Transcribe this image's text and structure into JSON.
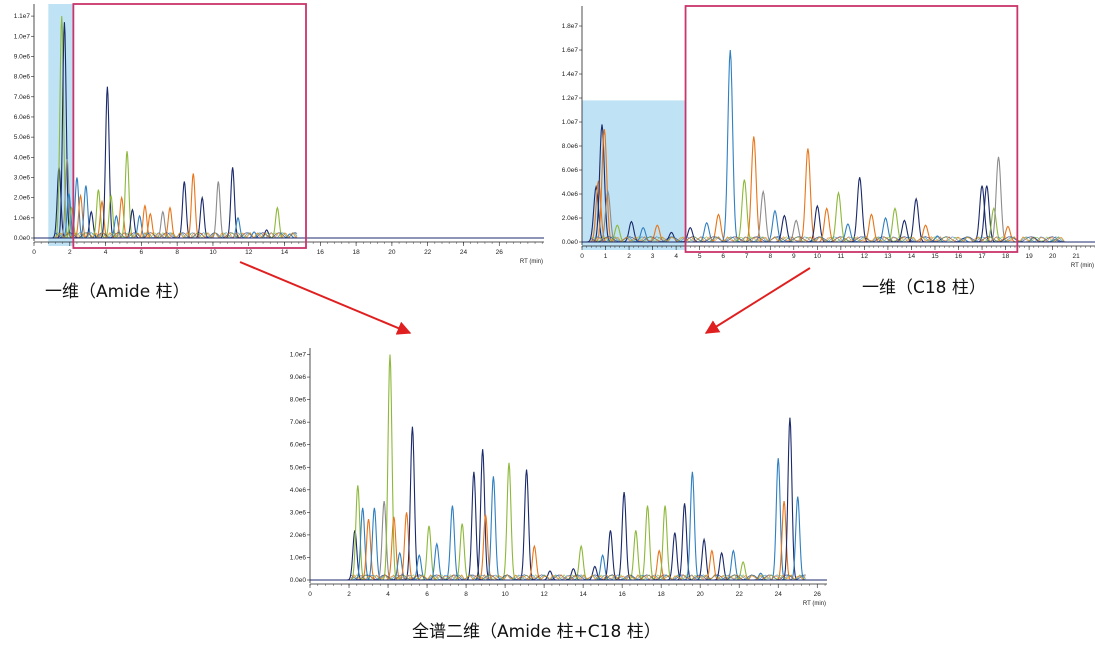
{
  "captions": {
    "top_left": "一维（Amide 柱）",
    "top_right": "一维（C18 柱）",
    "bottom": "全谱二维（Amide 柱+C18 柱）"
  },
  "colors": {
    "blue": "#2f7fc1",
    "navy": "#1b2a6b",
    "green": "#8db83a",
    "orange": "#e8751a",
    "gray": "#8c8c8c",
    "highlight_fill": "#bfe3f5",
    "box_stroke": "#c9346b",
    "arrow": "#e02020"
  },
  "chart_data": [
    {
      "name": "amide-1d",
      "type": "line",
      "xlabel": "RT (min)",
      "xlim": [
        0,
        28.5
      ],
      "ylim": [
        0,
        11500000
      ],
      "x_ticks": [
        0,
        2,
        4,
        6,
        8,
        10,
        12,
        14,
        16,
        18,
        20,
        22,
        24,
        26
      ],
      "y_ticks": [
        {
          "value": 0,
          "label": "0.0e0"
        },
        {
          "value": 1000000,
          "label": "1.0e6"
        },
        {
          "value": 2000000,
          "label": "2.0e6"
        },
        {
          "value": 3000000,
          "label": "3.0e6"
        },
        {
          "value": 4000000,
          "label": "4.0e6"
        },
        {
          "value": 5000000,
          "label": "5.0e6"
        },
        {
          "value": 6000000,
          "label": "6.0e6"
        },
        {
          "value": 7000000,
          "label": "7.0e6"
        },
        {
          "value": 8000000,
          "label": "8.0e6"
        },
        {
          "value": 9000000,
          "label": "9.0e6"
        },
        {
          "value": 10000000,
          "label": "1.0e7"
        },
        {
          "value": 11000000,
          "label": "1.1e7"
        }
      ],
      "highlight_range": [
        0.8,
        2.2
      ],
      "box_range": [
        2.2,
        15.2
      ],
      "peaks": [
        {
          "x": 1.4,
          "y": 3500000,
          "color": "navy"
        },
        {
          "x": 1.55,
          "y": 11000000,
          "color": "green"
        },
        {
          "x": 1.7,
          "y": 10700000,
          "color": "navy"
        },
        {
          "x": 1.85,
          "y": 3900000,
          "color": "gray"
        },
        {
          "x": 1.95,
          "y": 2200000,
          "color": "blue"
        },
        {
          "x": 2.1,
          "y": 1500000,
          "color": "green"
        },
        {
          "x": 2.4,
          "y": 3000000,
          "color": "blue"
        },
        {
          "x": 2.6,
          "y": 2100000,
          "color": "orange"
        },
        {
          "x": 2.9,
          "y": 2600000,
          "color": "blue"
        },
        {
          "x": 3.2,
          "y": 1300000,
          "color": "navy"
        },
        {
          "x": 3.6,
          "y": 2400000,
          "color": "green"
        },
        {
          "x": 3.8,
          "y": 1800000,
          "color": "orange"
        },
        {
          "x": 4.1,
          "y": 7500000,
          "color": "navy"
        },
        {
          "x": 4.3,
          "y": 2100000,
          "color": "green"
        },
        {
          "x": 4.6,
          "y": 1100000,
          "color": "blue"
        },
        {
          "x": 4.9,
          "y": 2000000,
          "color": "orange"
        },
        {
          "x": 5.2,
          "y": 4300000,
          "color": "green"
        },
        {
          "x": 5.5,
          "y": 1400000,
          "color": "navy"
        },
        {
          "x": 5.9,
          "y": 1100000,
          "color": "blue"
        },
        {
          "x": 6.2,
          "y": 1600000,
          "color": "orange"
        },
        {
          "x": 6.5,
          "y": 1200000,
          "color": "orange"
        },
        {
          "x": 7.2,
          "y": 1300000,
          "color": "gray"
        },
        {
          "x": 7.6,
          "y": 1500000,
          "color": "orange"
        },
        {
          "x": 8.4,
          "y": 2800000,
          "color": "navy"
        },
        {
          "x": 8.9,
          "y": 3200000,
          "color": "orange"
        },
        {
          "x": 9.4,
          "y": 2000000,
          "color": "navy"
        },
        {
          "x": 10.3,
          "y": 2800000,
          "color": "gray"
        },
        {
          "x": 11.1,
          "y": 3500000,
          "color": "navy"
        },
        {
          "x": 11.4,
          "y": 1000000,
          "color": "blue"
        },
        {
          "x": 12.3,
          "y": 300000,
          "color": "blue"
        },
        {
          "x": 13.0,
          "y": 400000,
          "color": "navy"
        },
        {
          "x": 13.6,
          "y": 1500000,
          "color": "green"
        },
        {
          "x": 14.3,
          "y": 200000,
          "color": "blue"
        }
      ]
    },
    {
      "name": "c18-1d",
      "type": "line",
      "xlabel": "RT (min)",
      "xlim": [
        0,
        21.8
      ],
      "ylim": [
        0,
        19500000
      ],
      "x_ticks": [
        0,
        1,
        2,
        3,
        4,
        5,
        6,
        7,
        8,
        9,
        10,
        11,
        12,
        13,
        14,
        15,
        16,
        17,
        18,
        19,
        20,
        21
      ],
      "y_ticks": [
        {
          "value": 0,
          "label": "0.0e0"
        },
        {
          "value": 2000000,
          "label": "2.0e6"
        },
        {
          "value": 4000000,
          "label": "4.0e6"
        },
        {
          "value": 6000000,
          "label": "6.0e6"
        },
        {
          "value": 8000000,
          "label": "8.0e6"
        },
        {
          "value": 10000000,
          "label": "1.0e7"
        },
        {
          "value": 12000000,
          "label": "1.2e7"
        },
        {
          "value": 14000000,
          "label": "1.4e7"
        },
        {
          "value": 16000000,
          "label": "1.6e7"
        },
        {
          "value": 18000000,
          "label": "1.8e7"
        }
      ],
      "highlight_range": [
        0.0,
        4.4
      ],
      "box_range": [
        4.4,
        18.5
      ],
      "peaks": [
        {
          "x": 0.6,
          "y": 4600000,
          "color": "navy"
        },
        {
          "x": 0.7,
          "y": 5100000,
          "color": "orange"
        },
        {
          "x": 0.85,
          "y": 9800000,
          "color": "navy"
        },
        {
          "x": 0.95,
          "y": 9400000,
          "color": "orange"
        },
        {
          "x": 1.1,
          "y": 4200000,
          "color": "gray"
        },
        {
          "x": 1.5,
          "y": 1400000,
          "color": "green"
        },
        {
          "x": 2.1,
          "y": 1700000,
          "color": "navy"
        },
        {
          "x": 2.6,
          "y": 1200000,
          "color": "blue"
        },
        {
          "x": 3.2,
          "y": 1400000,
          "color": "orange"
        },
        {
          "x": 3.8,
          "y": 800000,
          "color": "navy"
        },
        {
          "x": 4.6,
          "y": 1200000,
          "color": "navy"
        },
        {
          "x": 5.3,
          "y": 1600000,
          "color": "blue"
        },
        {
          "x": 5.8,
          "y": 2300000,
          "color": "orange"
        },
        {
          "x": 6.3,
          "y": 16000000,
          "color": "blue"
        },
        {
          "x": 6.9,
          "y": 5200000,
          "color": "green"
        },
        {
          "x": 7.3,
          "y": 8800000,
          "color": "orange"
        },
        {
          "x": 7.7,
          "y": 4200000,
          "color": "gray"
        },
        {
          "x": 8.2,
          "y": 2600000,
          "color": "blue"
        },
        {
          "x": 8.6,
          "y": 2200000,
          "color": "navy"
        },
        {
          "x": 9.1,
          "y": 1800000,
          "color": "gray"
        },
        {
          "x": 9.6,
          "y": 7800000,
          "color": "orange"
        },
        {
          "x": 10.0,
          "y": 3000000,
          "color": "navy"
        },
        {
          "x": 10.4,
          "y": 2800000,
          "color": "orange"
        },
        {
          "x": 10.9,
          "y": 4100000,
          "color": "green"
        },
        {
          "x": 11.3,
          "y": 1500000,
          "color": "blue"
        },
        {
          "x": 11.8,
          "y": 5400000,
          "color": "navy"
        },
        {
          "x": 12.3,
          "y": 2300000,
          "color": "orange"
        },
        {
          "x": 12.9,
          "y": 2000000,
          "color": "blue"
        },
        {
          "x": 13.3,
          "y": 2800000,
          "color": "green"
        },
        {
          "x": 13.7,
          "y": 1800000,
          "color": "navy"
        },
        {
          "x": 14.2,
          "y": 3600000,
          "color": "navy"
        },
        {
          "x": 14.6,
          "y": 1400000,
          "color": "orange"
        },
        {
          "x": 15.1,
          "y": 500000,
          "color": "blue"
        },
        {
          "x": 16.2,
          "y": 300000,
          "color": "blue"
        },
        {
          "x": 17.0,
          "y": 4700000,
          "color": "navy"
        },
        {
          "x": 17.2,
          "y": 4700000,
          "color": "navy"
        },
        {
          "x": 17.5,
          "y": 2800000,
          "color": "green"
        },
        {
          "x": 17.7,
          "y": 7100000,
          "color": "gray"
        },
        {
          "x": 18.1,
          "y": 1300000,
          "color": "orange"
        },
        {
          "x": 19.2,
          "y": 400000,
          "color": "blue"
        },
        {
          "x": 20.1,
          "y": 200000,
          "color": "blue"
        }
      ]
    },
    {
      "name": "full-2d",
      "type": "line",
      "xlabel": "RT (min)",
      "xlim": [
        0,
        26.5
      ],
      "ylim": [
        0,
        10200000
      ],
      "x_ticks": [
        0,
        2,
        4,
        6,
        8,
        10,
        12,
        14,
        16,
        18,
        20,
        22,
        24,
        26
      ],
      "y_ticks": [
        {
          "value": 0,
          "label": "0.0e0"
        },
        {
          "value": 1000000,
          "label": "1.0e6"
        },
        {
          "value": 2000000,
          "label": "2.0e6"
        },
        {
          "value": 3000000,
          "label": "3.0e6"
        },
        {
          "value": 4000000,
          "label": "4.0e6"
        },
        {
          "value": 5000000,
          "label": "5.0e6"
        },
        {
          "value": 6000000,
          "label": "6.0e6"
        },
        {
          "value": 7000000,
          "label": "7.0e6"
        },
        {
          "value": 8000000,
          "label": "8.0e6"
        },
        {
          "value": 9000000,
          "label": "9.0e6"
        },
        {
          "value": 10000000,
          "label": "1.0e7"
        }
      ],
      "peaks": [
        {
          "x": 2.3,
          "y": 2200000,
          "color": "navy"
        },
        {
          "x": 2.45,
          "y": 4200000,
          "color": "green"
        },
        {
          "x": 2.7,
          "y": 3200000,
          "color": "blue"
        },
        {
          "x": 3.0,
          "y": 2700000,
          "color": "orange"
        },
        {
          "x": 3.3,
          "y": 3200000,
          "color": "blue"
        },
        {
          "x": 3.8,
          "y": 3500000,
          "color": "gray"
        },
        {
          "x": 4.1,
          "y": 10000000,
          "color": "green"
        },
        {
          "x": 4.3,
          "y": 2800000,
          "color": "orange"
        },
        {
          "x": 4.6,
          "y": 1200000,
          "color": "blue"
        },
        {
          "x": 4.95,
          "y": 3000000,
          "color": "orange"
        },
        {
          "x": 5.25,
          "y": 6800000,
          "color": "navy"
        },
        {
          "x": 5.6,
          "y": 1100000,
          "color": "blue"
        },
        {
          "x": 6.1,
          "y": 2400000,
          "color": "green"
        },
        {
          "x": 6.5,
          "y": 1600000,
          "color": "blue"
        },
        {
          "x": 7.3,
          "y": 3300000,
          "color": "blue"
        },
        {
          "x": 7.8,
          "y": 2500000,
          "color": "green"
        },
        {
          "x": 8.4,
          "y": 4800000,
          "color": "navy"
        },
        {
          "x": 8.85,
          "y": 5800000,
          "color": "navy"
        },
        {
          "x": 9.0,
          "y": 2900000,
          "color": "orange"
        },
        {
          "x": 9.4,
          "y": 4600000,
          "color": "blue"
        },
        {
          "x": 10.2,
          "y": 5200000,
          "color": "green"
        },
        {
          "x": 11.1,
          "y": 4900000,
          "color": "navy"
        },
        {
          "x": 11.5,
          "y": 1500000,
          "color": "orange"
        },
        {
          "x": 12.3,
          "y": 400000,
          "color": "navy"
        },
        {
          "x": 13.5,
          "y": 500000,
          "color": "navy"
        },
        {
          "x": 13.9,
          "y": 1500000,
          "color": "green"
        },
        {
          "x": 14.6,
          "y": 600000,
          "color": "navy"
        },
        {
          "x": 15.0,
          "y": 1100000,
          "color": "blue"
        },
        {
          "x": 15.4,
          "y": 2200000,
          "color": "navy"
        },
        {
          "x": 16.1,
          "y": 3900000,
          "color": "navy"
        },
        {
          "x": 16.7,
          "y": 2200000,
          "color": "green"
        },
        {
          "x": 17.3,
          "y": 3300000,
          "color": "green"
        },
        {
          "x": 17.9,
          "y": 1300000,
          "color": "orange"
        },
        {
          "x": 18.2,
          "y": 3300000,
          "color": "green"
        },
        {
          "x": 18.7,
          "y": 2100000,
          "color": "navy"
        },
        {
          "x": 19.2,
          "y": 3400000,
          "color": "navy"
        },
        {
          "x": 19.6,
          "y": 4800000,
          "color": "blue"
        },
        {
          "x": 20.2,
          "y": 1800000,
          "color": "navy"
        },
        {
          "x": 20.6,
          "y": 1300000,
          "color": "orange"
        },
        {
          "x": 21.1,
          "y": 1200000,
          "color": "navy"
        },
        {
          "x": 21.7,
          "y": 1300000,
          "color": "blue"
        },
        {
          "x": 22.2,
          "y": 800000,
          "color": "green"
        },
        {
          "x": 23.1,
          "y": 300000,
          "color": "blue"
        },
        {
          "x": 24.0,
          "y": 5400000,
          "color": "blue"
        },
        {
          "x": 24.3,
          "y": 3500000,
          "color": "orange"
        },
        {
          "x": 24.6,
          "y": 7200000,
          "color": "navy"
        },
        {
          "x": 25.0,
          "y": 3700000,
          "color": "blue"
        }
      ]
    }
  ]
}
